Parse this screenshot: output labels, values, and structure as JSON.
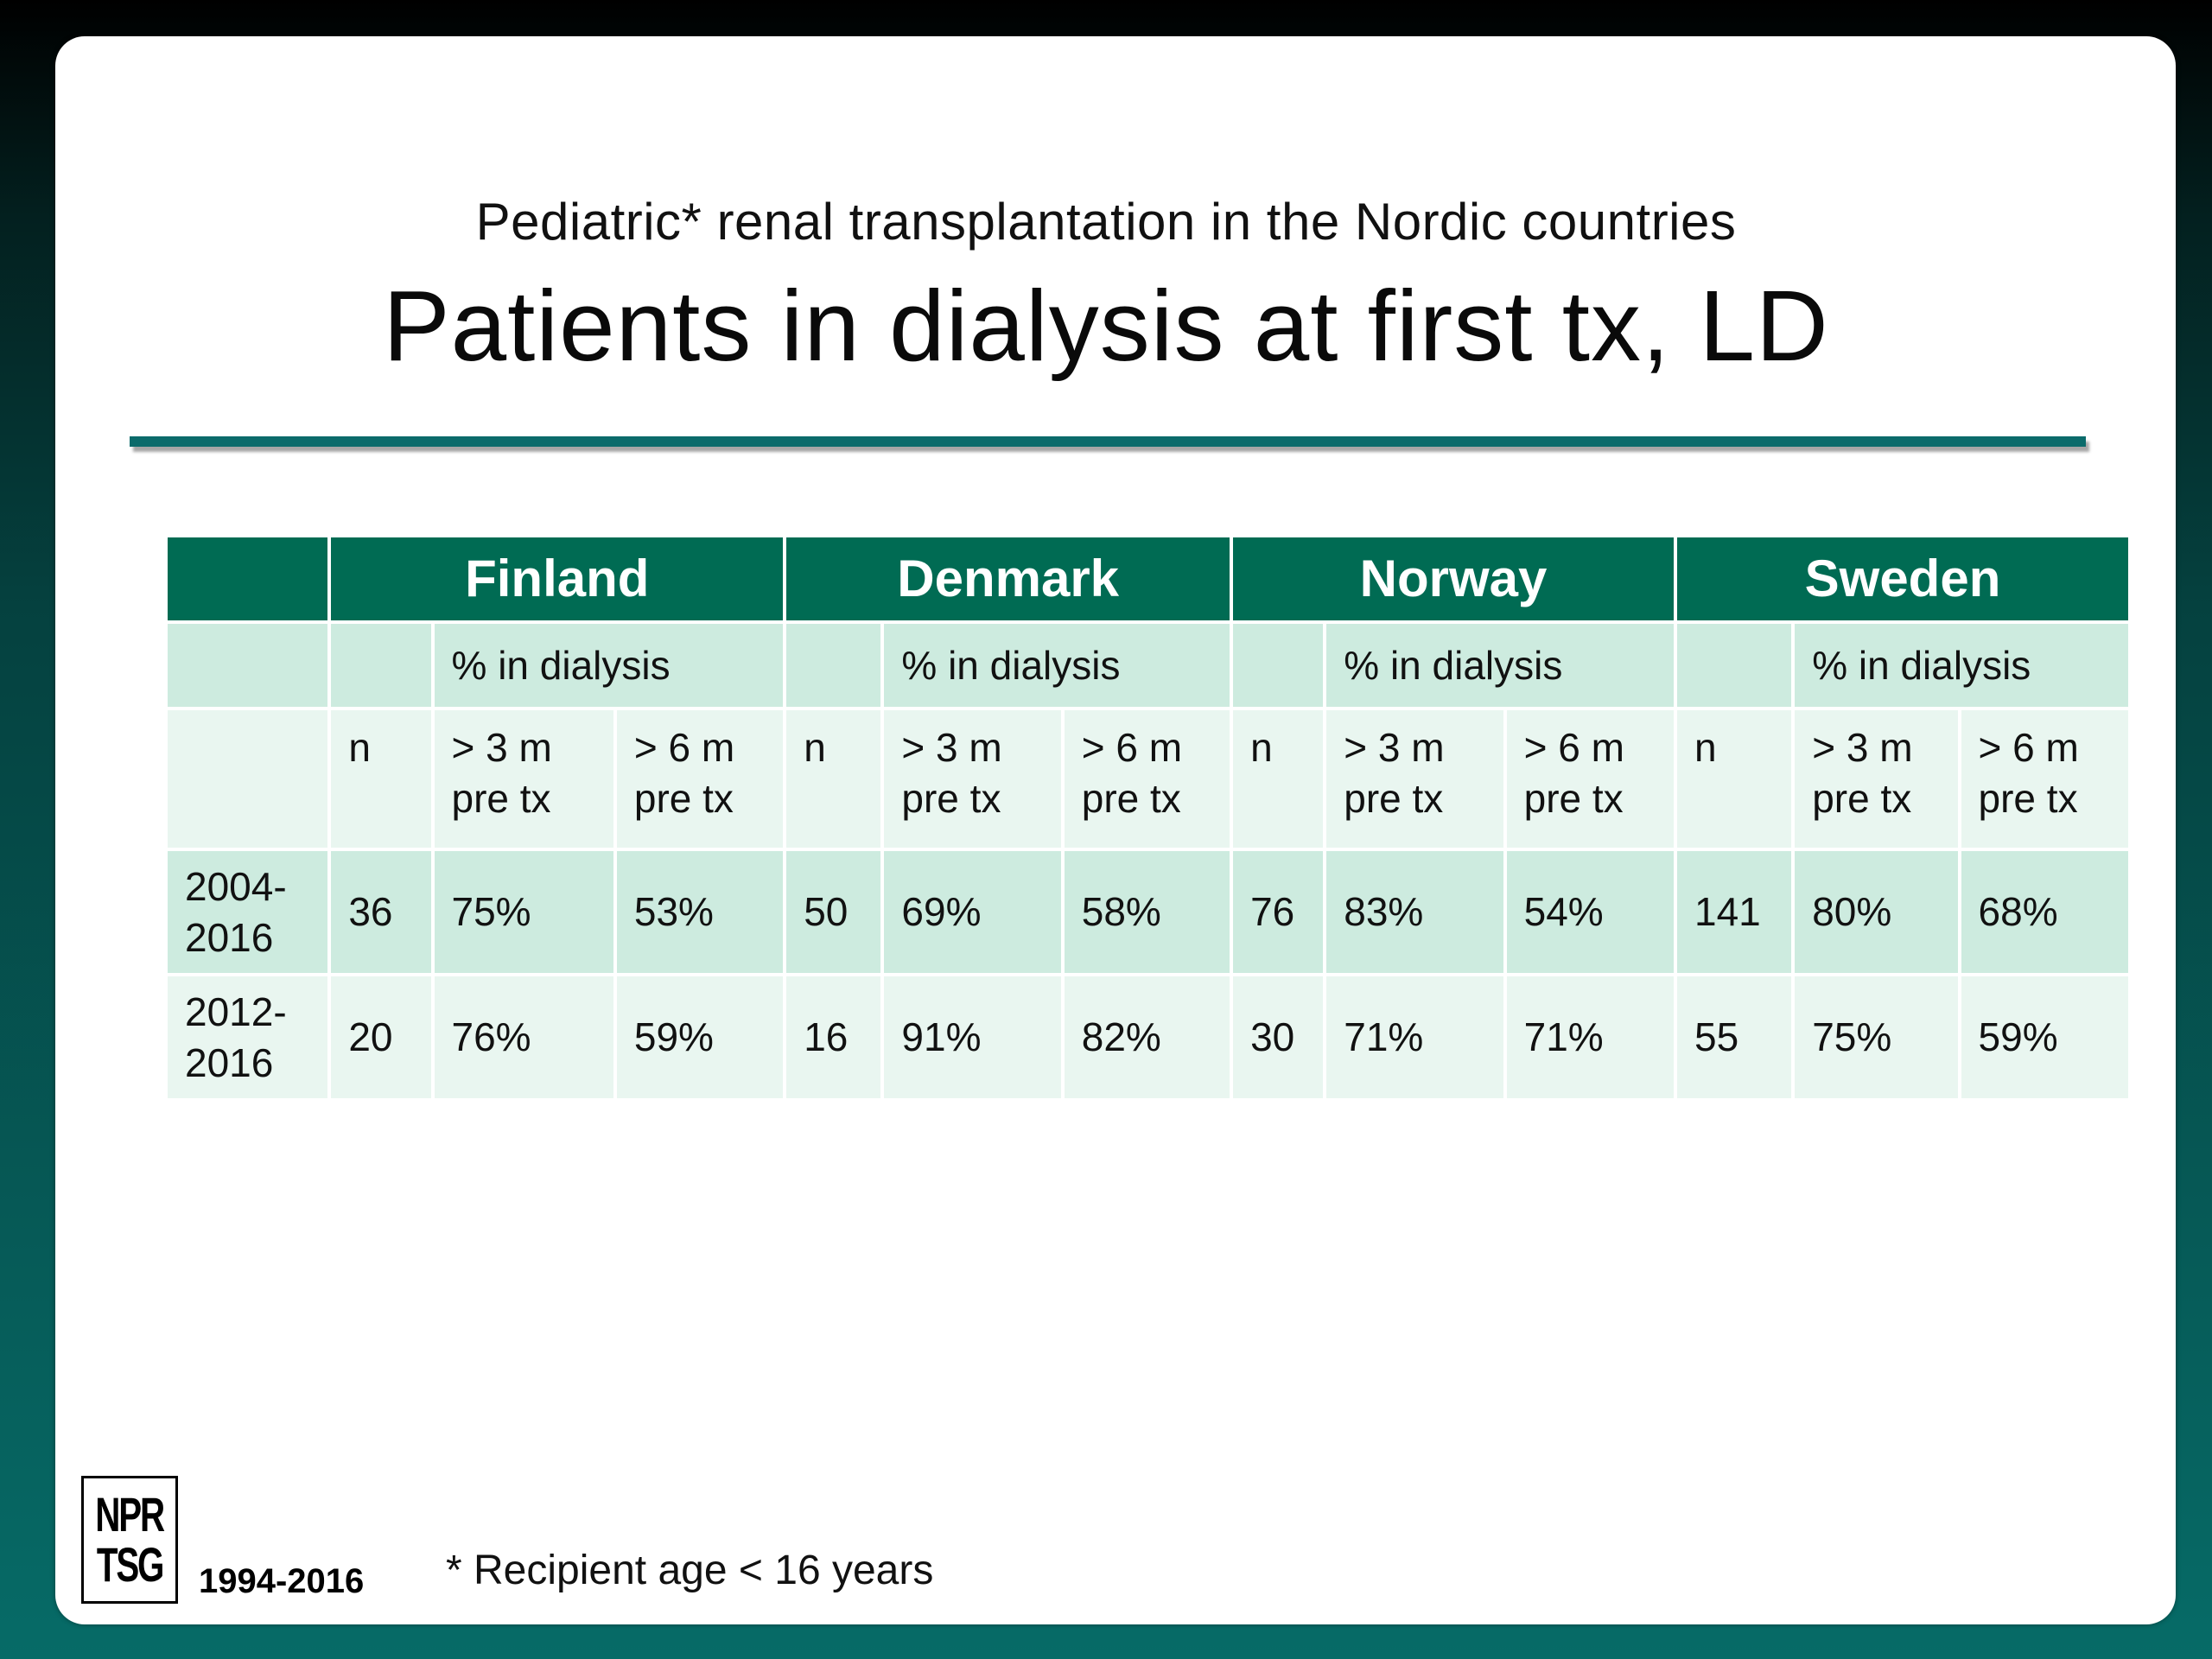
{
  "header": {
    "subtitle": "Pediatric* renal transplantation in the Nordic countries",
    "title": "Patients in dialysis at first tx, LD"
  },
  "table": {
    "countries": [
      "Finland",
      "Denmark",
      "Norway",
      "Sweden"
    ],
    "group_label": "% in dialysis",
    "columns": {
      "n": "n",
      "gt3_line1": "> 3 m",
      "gt3_line2": "pre tx",
      "gt6_line1": "> 6 m",
      "gt6_line2": "pre tx"
    },
    "rows": [
      {
        "period_line1": "2004-",
        "period_line2": "2016",
        "cells": [
          [
            "36",
            "75%",
            "53%"
          ],
          [
            "50",
            "69%",
            "58%"
          ],
          [
            "76",
            "83%",
            "54%"
          ],
          [
            "141",
            "80%",
            "68%"
          ]
        ]
      },
      {
        "period_line1": "2012-",
        "period_line2": "2016",
        "cells": [
          [
            "20",
            "76%",
            "59%"
          ],
          [
            "16",
            "91%",
            "82%"
          ],
          [
            "30",
            "71%",
            "71%"
          ],
          [
            "55",
            "75%",
            "59%"
          ]
        ]
      }
    ]
  },
  "footer": {
    "logo_line1": "NPR",
    "logo_line2": "TSG",
    "years": "1994-2016",
    "footnote": "* Recipient age < 16 years"
  }
}
